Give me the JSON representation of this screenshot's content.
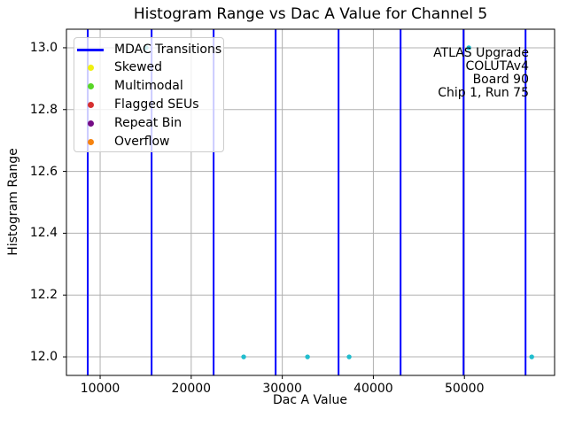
{
  "chart_data": {
    "type": "scatter",
    "title": "Histogram Range vs Dac A Value for Channel 5",
    "xlabel": "Dac A Value",
    "ylabel": "Histogram Range",
    "xlim": [
      6300,
      59900
    ],
    "ylim": [
      11.94,
      13.06
    ],
    "x_ticks": [
      10000,
      20000,
      30000,
      40000,
      50000
    ],
    "y_ticks": [
      12.0,
      12.2,
      12.4,
      12.6,
      12.8,
      13.0
    ],
    "grid": true,
    "grid_color": "#b0b0b0",
    "legend_position": "upper left",
    "mdac_transition_color": "#0000ff",
    "mdac_transitions": [
      8640,
      15650,
      22460,
      29270,
      36180,
      42990,
      49900,
      56710
    ],
    "point_color": "#20bdce",
    "points": [
      {
        "x": 15060,
        "y": 13.0
      },
      {
        "x": 50480,
        "y": 13.0
      },
      {
        "x": 25760,
        "y": 12.0
      },
      {
        "x": 32770,
        "y": 12.0
      },
      {
        "x": 37340,
        "y": 12.0
      },
      {
        "x": 57390,
        "y": 12.0
      }
    ],
    "legend": [
      {
        "label": "MDAC Transitions",
        "marker": "line",
        "color": "#0000ff"
      },
      {
        "label": "Skewed",
        "marker": "dot",
        "color": "#f0f010"
      },
      {
        "label": "Multimodal",
        "marker": "dot",
        "color": "#58d626"
      },
      {
        "label": "Flagged SEUs",
        "marker": "dot",
        "color": "#d62f2f"
      },
      {
        "label": "Repeat Bin",
        "marker": "dot",
        "color": "#750d86"
      },
      {
        "label": "Overflow",
        "marker": "dot",
        "color": "#f6830f"
      }
    ],
    "annotation_lines": [
      "ATLAS Upgrade",
      "COLUTAv4",
      "Board 90",
      "Chip 1, Run 75"
    ]
  }
}
